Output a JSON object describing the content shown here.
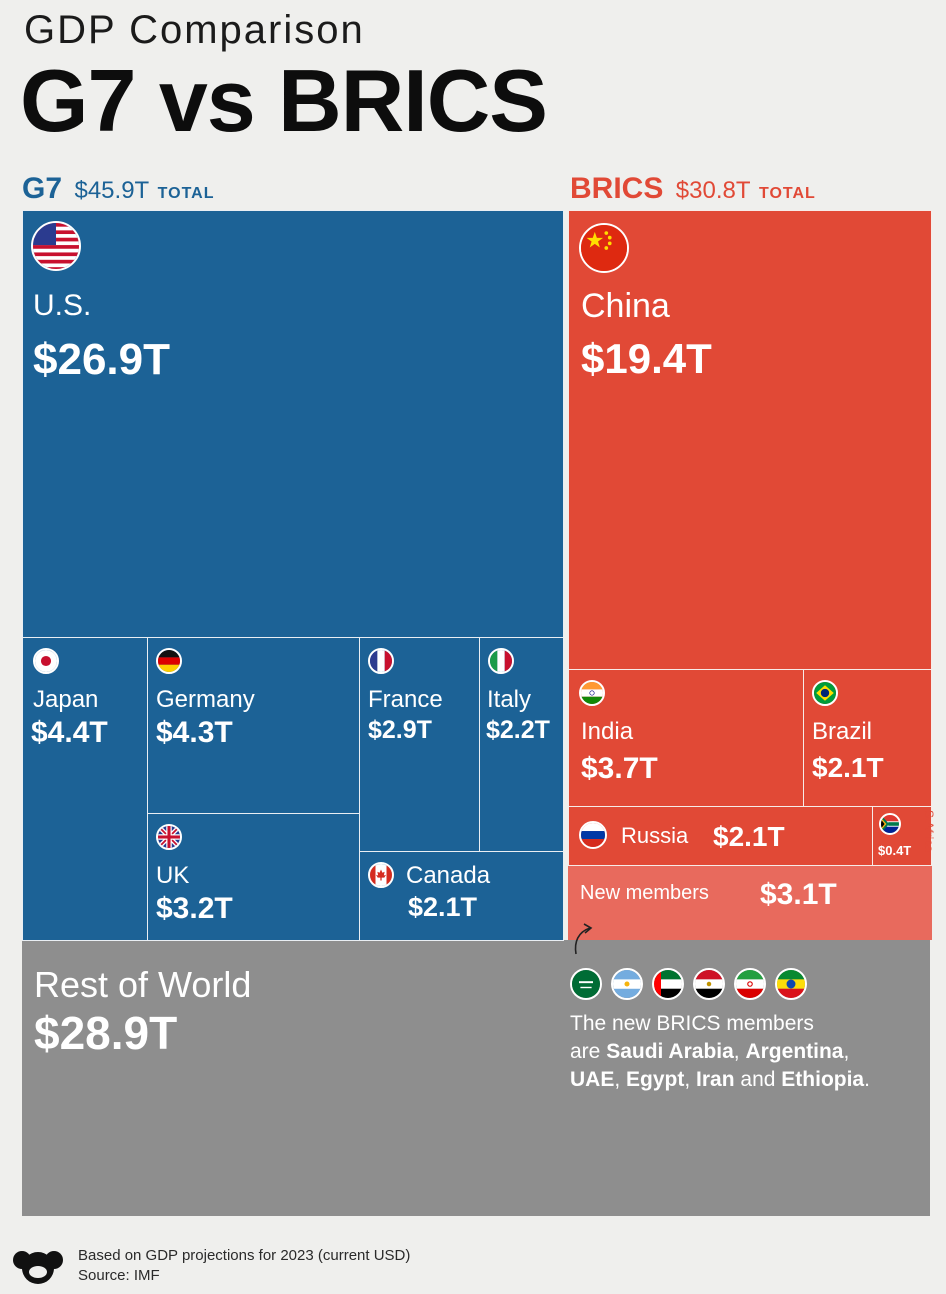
{
  "header": {
    "subtitle": "GDP Comparison",
    "title": "G7 vs BRICS"
  },
  "groups": {
    "g7": {
      "name": "G7",
      "total": "$45.9T",
      "total_word": "TOTAL",
      "color": "#1c6296"
    },
    "brics": {
      "name": "BRICS",
      "total": "$30.8T",
      "total_word": "TOTAL",
      "color": "#e14936"
    }
  },
  "chart_data": {
    "type": "treemap",
    "unit": "USD trillions",
    "groups": [
      {
        "name": "G7",
        "total": 45.9,
        "members": [
          {
            "name": "U.S.",
            "value": 26.9,
            "label": "$26.9T"
          },
          {
            "name": "Japan",
            "value": 4.4,
            "label": "$4.4T"
          },
          {
            "name": "Germany",
            "value": 4.3,
            "label": "$4.3T"
          },
          {
            "name": "UK",
            "value": 3.2,
            "label": "$3.2T"
          },
          {
            "name": "France",
            "value": 2.9,
            "label": "$2.9T"
          },
          {
            "name": "Italy",
            "value": 2.2,
            "label": "$2.2T"
          },
          {
            "name": "Canada",
            "value": 2.1,
            "label": "$2.1T"
          }
        ]
      },
      {
        "name": "BRICS",
        "total": 30.8,
        "members": [
          {
            "name": "China",
            "value": 19.4,
            "label": "$19.4T"
          },
          {
            "name": "India",
            "value": 3.7,
            "label": "$3.7T"
          },
          {
            "name": "Brazil",
            "value": 2.1,
            "label": "$2.1T"
          },
          {
            "name": "Russia",
            "value": 2.1,
            "label": "$2.1T"
          },
          {
            "name": "S.Africa",
            "value": 0.4,
            "label": "$0.4T"
          }
        ]
      },
      {
        "name": "New members",
        "value": 3.1,
        "label": "$3.1T"
      },
      {
        "name": "Rest of World",
        "value": 28.9,
        "label": "$28.9T"
      }
    ]
  },
  "new_members_note": {
    "line1": "The new BRICS members",
    "are": "are",
    "countries": [
      "Saudi Arabia",
      "Argentina",
      "UAE",
      "Egypt",
      "Iran",
      "Ethiopia"
    ],
    "and": "and"
  },
  "footer": {
    "line1": "Based on GDP projections for 2023 (current USD)",
    "line2": "Source: IMF"
  }
}
